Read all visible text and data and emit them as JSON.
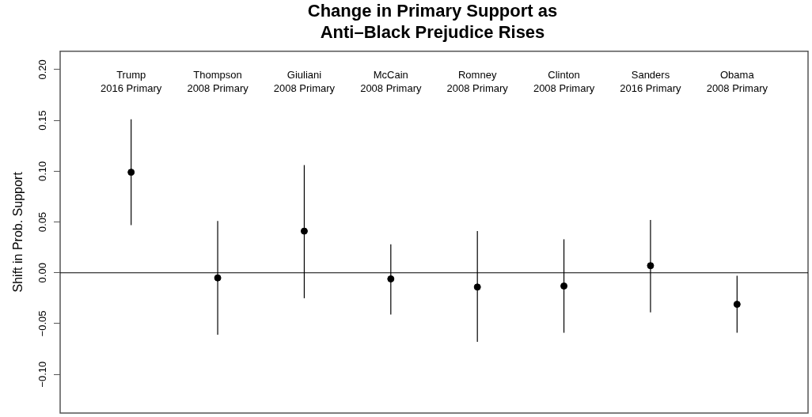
{
  "chart_data": {
    "type": "scatter",
    "title": "Change in Primary Support as\nAnti–Black Prejudice Rises",
    "ylabel": "Shift in Prob. Support",
    "categories": [
      "Trump\n2016 Primary",
      "Thompson\n2008 Primary",
      "Giuliani\n2008 Primary",
      "McCain\n2008 Primary",
      "Romney\n2008 Primary",
      "Clinton\n2008 Primary",
      "Sanders\n2016 Primary",
      "Obama\n2008 Primary"
    ],
    "series": [
      {
        "color": "#000000",
        "values": [
          0.099,
          -0.005,
          0.041,
          -0.006,
          -0.014,
          -0.013,
          0.007,
          -0.031
        ],
        "errors": [
          [
            0.047,
            0.151
          ],
          [
            -0.061,
            0.051
          ],
          [
            -0.025,
            0.106
          ],
          [
            -0.041,
            0.028
          ],
          [
            -0.068,
            0.041
          ],
          [
            -0.059,
            0.033
          ],
          [
            -0.039,
            0.052
          ],
          [
            -0.059,
            -0.003
          ]
        ]
      }
    ],
    "ylim": [
      -0.138,
      0.218
    ],
    "yticks": [
      {
        "value": -0.1,
        "label": "−0.10"
      },
      {
        "value": -0.05,
        "label": "−0.05"
      },
      {
        "value": 0,
        "label": "0.00"
      },
      {
        "value": 0.05,
        "label": "0.05"
      },
      {
        "value": 0.1,
        "label": "0.10"
      },
      {
        "value": 0.15,
        "label": "0.15"
      },
      {
        "value": 0.2,
        "label": "0.20"
      }
    ],
    "ref_lines": [
      {
        "axis": "y",
        "value": 0,
        "color": "#000000"
      }
    ],
    "grid": false,
    "legend": false,
    "marker": "circle",
    "tick_labels": "y"
  }
}
